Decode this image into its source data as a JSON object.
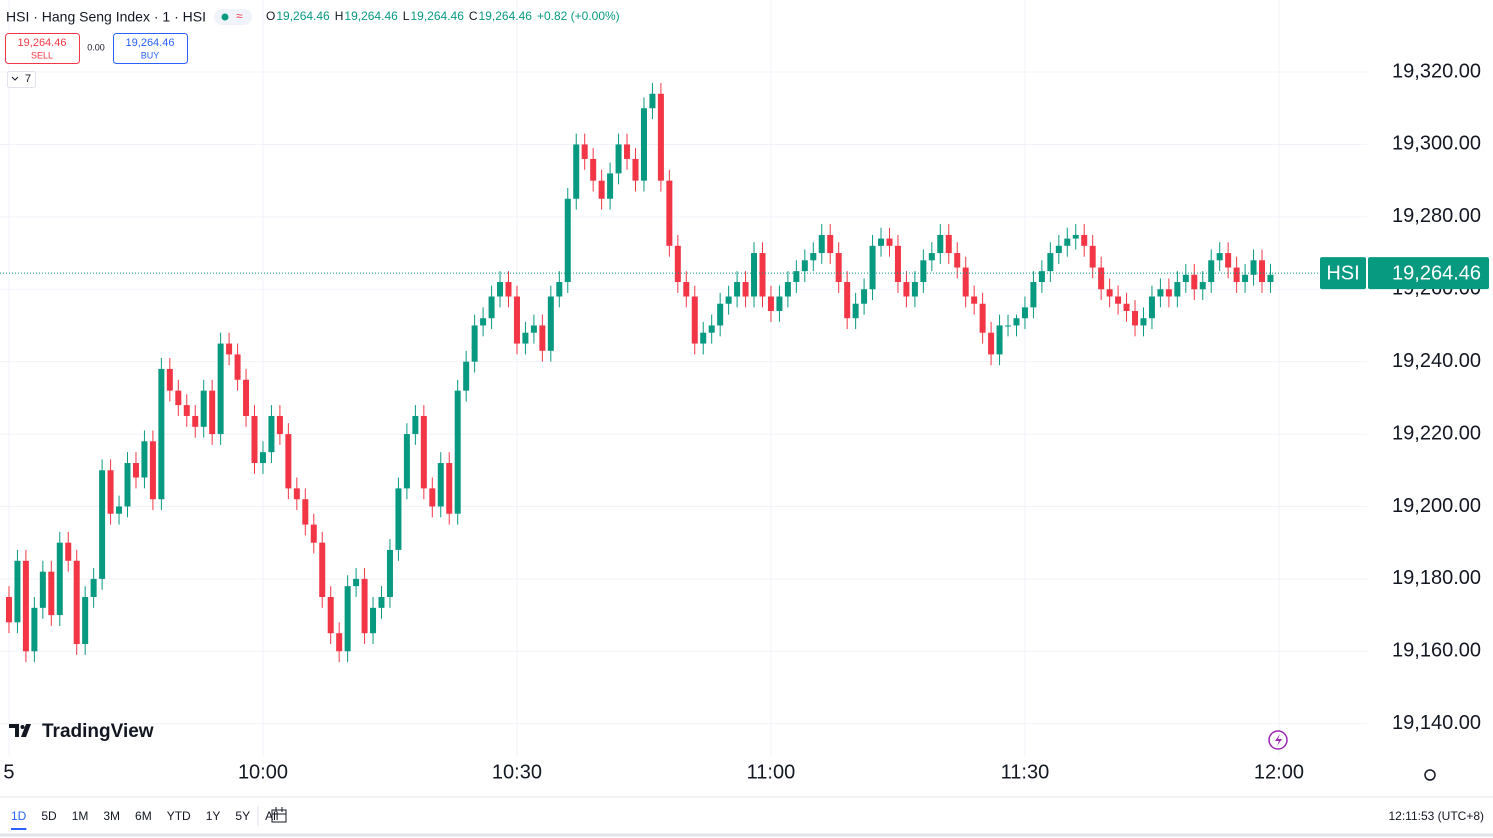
{
  "header": {
    "title": "HSI · Hang Seng Index · 1 · HSI",
    "legend": [
      {
        "key": "O",
        "value": "19,264.46"
      },
      {
        "key": "H",
        "value": "19,264.46"
      },
      {
        "key": "L",
        "value": "19,264.46"
      },
      {
        "key": "C",
        "value": "19,264.46"
      }
    ],
    "change": "+0.82 (+0.00%)"
  },
  "trade": {
    "sell_price": "19,264.46",
    "sell": "SELL",
    "spread": "0.00",
    "buy_price": "19,264.46",
    "buy": "BUY"
  },
  "indicators_count": "7",
  "logo": "TradingView",
  "chart_data": {
    "type": "candlestick",
    "symbol": "HSI",
    "up_color": "#089981",
    "down_color": "#f23645",
    "grid": true,
    "open": [
      19175,
      19168,
      19185,
      19160,
      19172,
      19182,
      19170,
      19190,
      19185,
      19162,
      19175,
      19180,
      19210,
      19198,
      19200,
      19212,
      19208,
      19218,
      19202,
      19238,
      19232,
      19228,
      19225,
      19222,
      19232,
      19220,
      19245,
      19242,
      19235,
      19225,
      19212,
      19215,
      19225,
      19220,
      19205,
      19202,
      19195,
      19190,
      19175,
      19165,
      19160,
      19178,
      19180,
      19165,
      19172,
      19175,
      19188,
      19205,
      19220,
      19225,
      19205,
      19200,
      19212,
      19198,
      19232,
      19240,
      19250,
      19252,
      19258,
      19262,
      19258,
      19245,
      19248,
      19250,
      19243,
      19258,
      19262,
      19285,
      19300,
      19296,
      19290,
      19285,
      19292,
      19300,
      19296,
      19290,
      19310,
      19314,
      19290,
      19272,
      19262,
      19258,
      19245,
      19248,
      19250,
      19256,
      19258,
      19262,
      19258,
      19270,
      19258,
      19254,
      19258,
      19262,
      19265,
      19268,
      19270,
      19275,
      19270,
      19262,
      19252,
      19256,
      19260,
      19272,
      19274,
      19272,
      19262,
      19258,
      19262,
      19268,
      19270,
      19275,
      19270,
      19266,
      19258,
      19256,
      19248,
      19242,
      19250,
      19250,
      19252,
      19255,
      19262,
      19265,
      19270,
      19272,
      19274,
      19275,
      19272,
      19266,
      19260,
      19258,
      19256,
      19254,
      19250,
      19252,
      19258,
      19260,
      19258,
      19262,
      19264,
      19260,
      19262,
      19268,
      19270,
      19266,
      19262,
      19264,
      19268,
      19262
    ],
    "high": [
      19178,
      19188,
      19188,
      19175,
      19185,
      19185,
      19193,
      19193,
      19188,
      19178,
      19183,
      19213,
      19213,
      19203,
      19215,
      19215,
      19221,
      19221,
      19241,
      19241,
      19235,
      19231,
      19228,
      19235,
      19235,
      19248,
      19248,
      19245,
      19238,
      19228,
      19218,
      19228,
      19228,
      19223,
      19208,
      19205,
      19198,
      19193,
      19178,
      19168,
      19181,
      19183,
      19183,
      19175,
      19178,
      19191,
      19208,
      19223,
      19228,
      19228,
      19208,
      19215,
      19215,
      19235,
      19243,
      19253,
      19255,
      19261,
      19265,
      19265,
      19261,
      19251,
      19253,
      19253,
      19261,
      19265,
      19288,
      19303,
      19303,
      19299,
      19293,
      19295,
      19303,
      19303,
      19299,
      19313,
      19317,
      19317,
      19293,
      19275,
      19265,
      19261,
      19251,
      19253,
      19259,
      19261,
      19265,
      19265,
      19273,
      19273,
      19261,
      19261,
      19265,
      19268,
      19271,
      19273,
      19278,
      19278,
      19273,
      19265,
      19259,
      19263,
      19275,
      19277,
      19277,
      19275,
      19265,
      19265,
      19271,
      19273,
      19278,
      19278,
      19273,
      19269,
      19261,
      19259,
      19251,
      19253,
      19253,
      19253,
      19258,
      19265,
      19268,
      19273,
      19275,
      19277,
      19278,
      19278,
      19275,
      19269,
      19263,
      19261,
      19259,
      19257,
      19255,
      19261,
      19263,
      19263,
      19265,
      19267,
      19267,
      19265,
      19271,
      19273,
      19273,
      19269,
      19267,
      19271,
      19271,
      19267
    ],
    "low": [
      19165,
      19165,
      19157,
      19157,
      19169,
      19167,
      19167,
      19182,
      19159,
      19159,
      19172,
      19177,
      19195,
      19195,
      19197,
      19205,
      19205,
      19199,
      19199,
      19229,
      19225,
      19222,
      19219,
      19219,
      19217,
      19217,
      19239,
      19232,
      19222,
      19209,
      19209,
      19212,
      19217,
      19202,
      19199,
      19192,
      19187,
      19172,
      19162,
      19157,
      19157,
      19175,
      19162,
      19162,
      19169,
      19172,
      19185,
      19202,
      19217,
      19202,
      19197,
      19197,
      19195,
      19195,
      19229,
      19237,
      19247,
      19249,
      19255,
      19255,
      19242,
      19242,
      19245,
      19240,
      19240,
      19255,
      19259,
      19282,
      19293,
      19287,
      19282,
      19282,
      19289,
      19293,
      19287,
      19287,
      19307,
      19287,
      19269,
      19259,
      19255,
      19242,
      19242,
      19245,
      19247,
      19253,
      19255,
      19255,
      19255,
      19255,
      19251,
      19251,
      19255,
      19259,
      19262,
      19265,
      19267,
      19267,
      19259,
      19249,
      19249,
      19253,
      19257,
      19269,
      19269,
      19259,
      19255,
      19255,
      19259,
      19265,
      19267,
      19267,
      19263,
      19255,
      19253,
      19245,
      19239,
      19239,
      19247,
      19247,
      19249,
      19252,
      19259,
      19262,
      19267,
      19269,
      19271,
      19269,
      19263,
      19257,
      19255,
      19253,
      19251,
      19247,
      19247,
      19249,
      19255,
      19255,
      19255,
      19259,
      19257,
      19257,
      19259,
      19265,
      19263,
      19259,
      19259,
      19261,
      19259,
      19259
    ],
    "close": [
      19168,
      19185,
      19160,
      19172,
      19182,
      19170,
      19190,
      19185,
      19162,
      19175,
      19180,
      19210,
      19198,
      19200,
      19212,
      19208,
      19218,
      19202,
      19238,
      19232,
      19228,
      19225,
      19222,
      19232,
      19220,
      19245,
      19242,
      19235,
      19225,
      19212,
      19215,
      19225,
      19220,
      19205,
      19202,
      19195,
      19190,
      19175,
      19165,
      19160,
      19178,
      19180,
      19165,
      19172,
      19175,
      19188,
      19205,
      19220,
      19225,
      19205,
      19200,
      19212,
      19198,
      19232,
      19240,
      19250,
      19252,
      19258,
      19262,
      19258,
      19245,
      19248,
      19250,
      19243,
      19258,
      19262,
      19285,
      19300,
      19296,
      19290,
      19285,
      19292,
      19300,
      19296,
      19290,
      19310,
      19314,
      19290,
      19272,
      19262,
      19258,
      19245,
      19248,
      19250,
      19256,
      19258,
      19262,
      19258,
      19270,
      19258,
      19254,
      19258,
      19262,
      19265,
      19268,
      19270,
      19275,
      19270,
      19262,
      19252,
      19256,
      19260,
      19272,
      19274,
      19272,
      19262,
      19258,
      19262,
      19268,
      19270,
      19275,
      19270,
      19266,
      19258,
      19256,
      19248,
      19242,
      19250,
      19250,
      19252,
      19255,
      19262,
      19265,
      19270,
      19272,
      19274,
      19275,
      19272,
      19266,
      19260,
      19258,
      19256,
      19254,
      19250,
      19252,
      19258,
      19260,
      19258,
      19262,
      19264,
      19260,
      19262,
      19268,
      19270,
      19266,
      19262,
      19264,
      19268,
      19262,
      19264
    ],
    "xlim": [
      -1.06,
      160.4
    ],
    "xticks": [
      {
        "value": 0,
        "label": "5"
      },
      {
        "value": 30,
        "label": "10:00"
      },
      {
        "value": 60,
        "label": "10:30"
      },
      {
        "value": 90,
        "label": "11:00"
      },
      {
        "value": 120,
        "label": "11:30"
      },
      {
        "value": 150,
        "label": "12:00"
      }
    ],
    "ylim": [
      19130.8,
      19339.9
    ],
    "yticks": [
      {
        "value": 19140,
        "label": "19,140.00"
      },
      {
        "value": 19160,
        "label": "19,160.00"
      },
      {
        "value": 19180,
        "label": "19,180.00"
      },
      {
        "value": 19200,
        "label": "19,200.00"
      },
      {
        "value": 19220,
        "label": "19,220.00"
      },
      {
        "value": 19240,
        "label": "19,240.00"
      },
      {
        "value": 19260,
        "label": "19,260.00"
      },
      {
        "value": 19280,
        "label": "19,280.00"
      },
      {
        "value": 19300,
        "label": "19,300.00"
      },
      {
        "value": 19320,
        "label": "19,320.00"
      }
    ],
    "last_price": {
      "value": 19264.46,
      "label": "19,264.46"
    }
  },
  "ranges": [
    "1D",
    "5D",
    "1M",
    "3M",
    "6M",
    "YTD",
    "1Y",
    "5Y",
    "All"
  ],
  "clock": "12:11:53 (UTC+8)"
}
